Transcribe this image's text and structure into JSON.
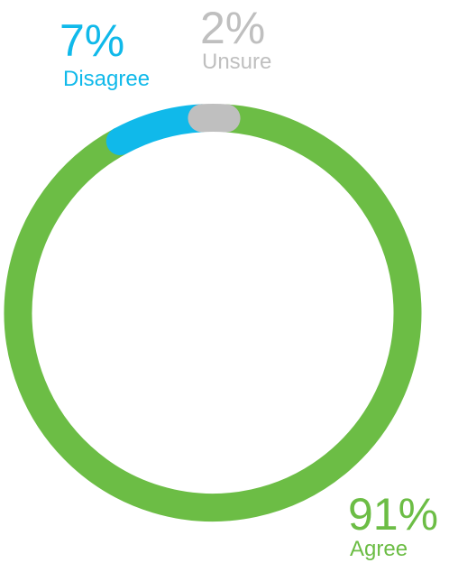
{
  "chart_data": {
    "type": "donut",
    "categories": [
      "Agree",
      "Disagree",
      "Unsure"
    ],
    "values": [
      91,
      7,
      2
    ],
    "value_labels": [
      "91%",
      "7%",
      "2%"
    ],
    "colors": [
      "#6cbd45",
      "#10b9ea",
      "#bfbfbf"
    ]
  }
}
